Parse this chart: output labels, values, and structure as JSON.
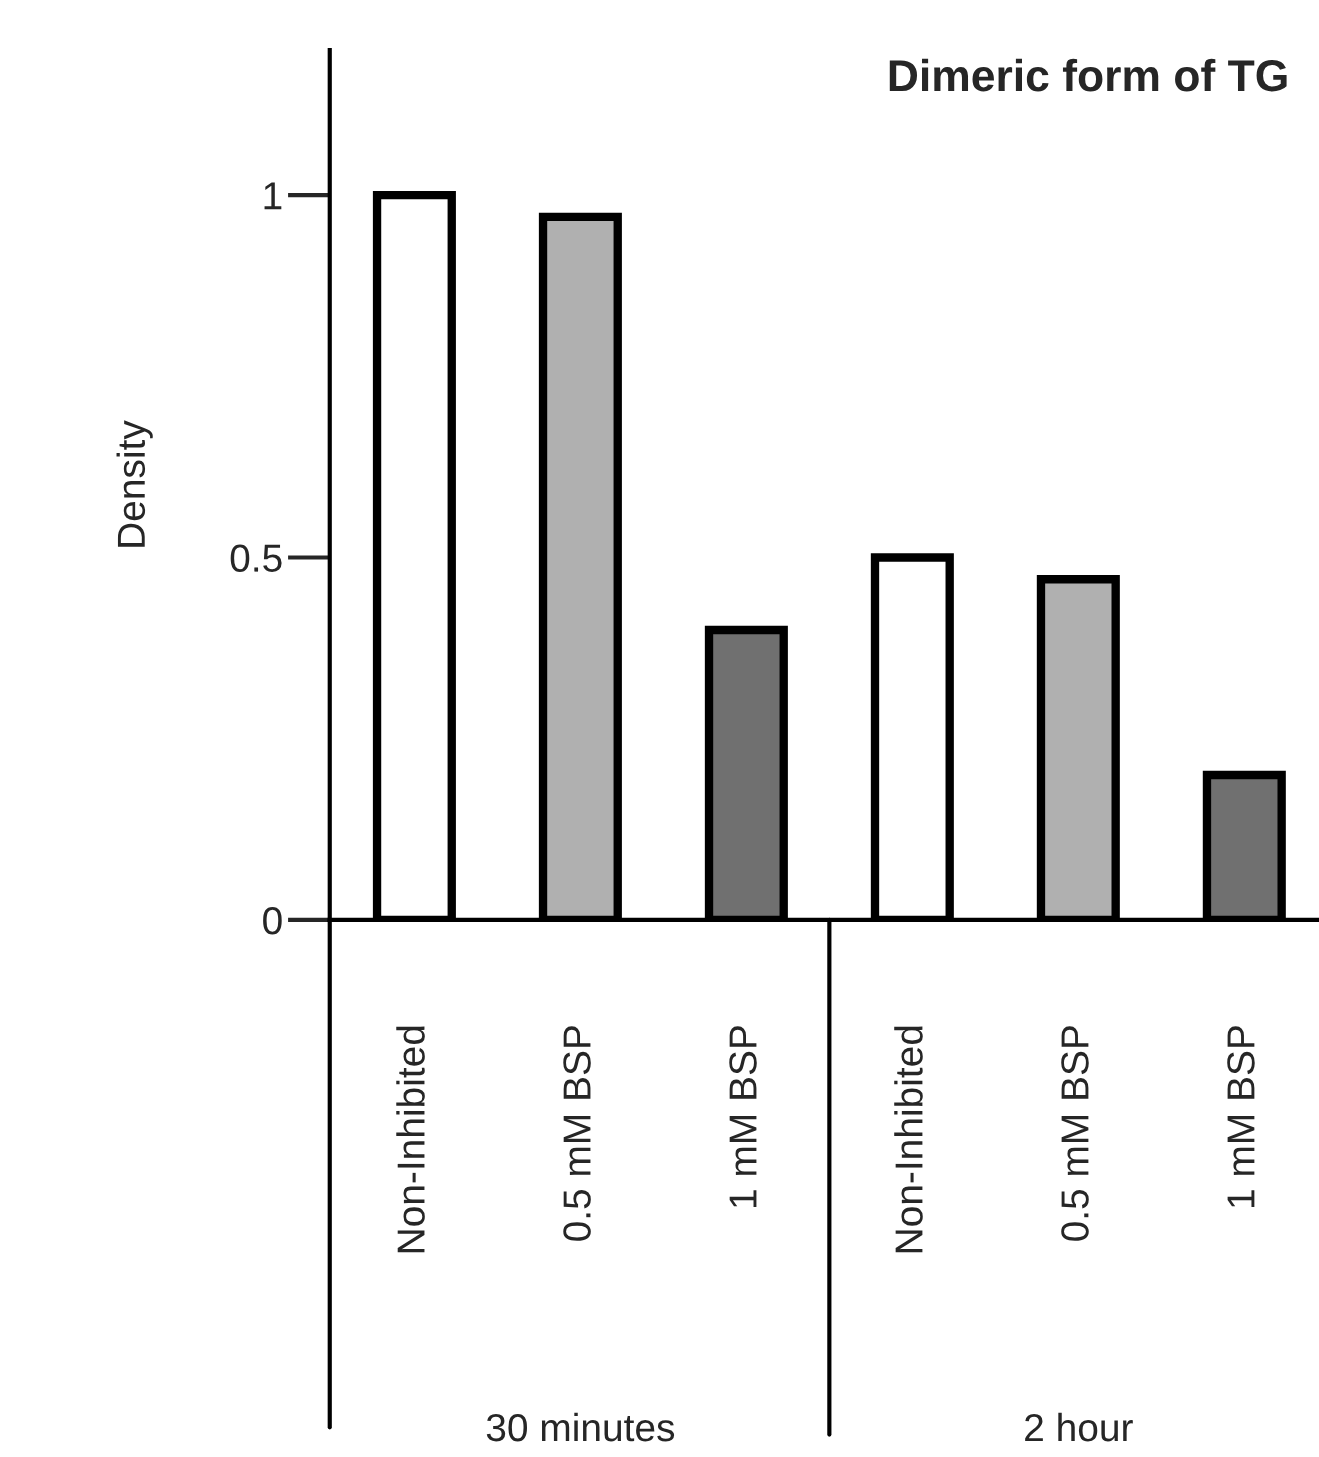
{
  "chart_data": {
    "type": "bar",
    "title": "Dimeric form of TG",
    "ylabel": "Density",
    "categories": [
      "Non-Inhibited",
      "0.5 mM BSP",
      "1 mM BSP",
      "Non-Inhibited",
      "0.5 mM BSP",
      "1 mM BSP"
    ],
    "values": [
      1.0,
      0.97,
      0.4,
      0.5,
      0.47,
      0.2
    ],
    "colors": [
      "#ffffff",
      "#b0b0b0",
      "#707070",
      "#ffffff",
      "#b0b0b0",
      "#707070"
    ],
    "ylim": [
      0,
      1.2
    ],
    "yticks": [
      0,
      0.5,
      1
    ],
    "annotations": [
      "30 minutes",
      "2 hour"
    ],
    "grid": false,
    "legend": false
  }
}
